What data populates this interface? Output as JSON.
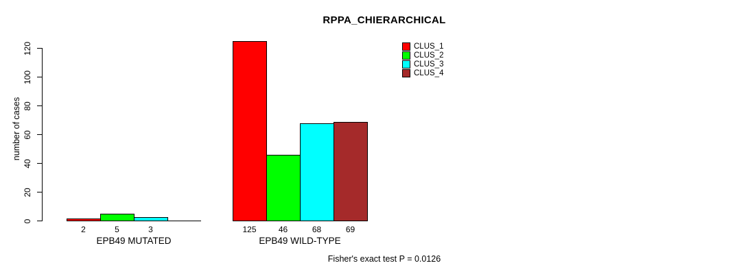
{
  "chart_data": {
    "type": "bar",
    "title": "RPPA_CHIERARCHICAL",
    "ylabel": "number of cases",
    "xlabel": "",
    "yticks": [
      0,
      20,
      40,
      60,
      80,
      100,
      120
    ],
    "ylim": [
      0,
      130
    ],
    "grid": false,
    "legend_position": "top-right",
    "background": "#ffffff",
    "axis_color": "#000000",
    "series": [
      {
        "name": "CLUS_1",
        "color": "#ff0000"
      },
      {
        "name": "CLUS_2",
        "color": "#00ff00"
      },
      {
        "name": "CLUS_3",
        "color": "#00ffff"
      },
      {
        "name": "CLUS_4",
        "color": "#a52a2a"
      }
    ],
    "groups": [
      {
        "label": "EPB49 MUTATED",
        "values": [
          2,
          5,
          3,
          0
        ],
        "value_labels": [
          "2",
          "5",
          "3",
          ""
        ]
      },
      {
        "label": "EPB49 WILD-TYPE",
        "values": [
          125,
          46,
          68,
          69
        ],
        "value_labels": [
          "125",
          "46",
          "68",
          "69"
        ]
      }
    ],
    "footnote": "Fisher's exact test P = 0.0126"
  }
}
